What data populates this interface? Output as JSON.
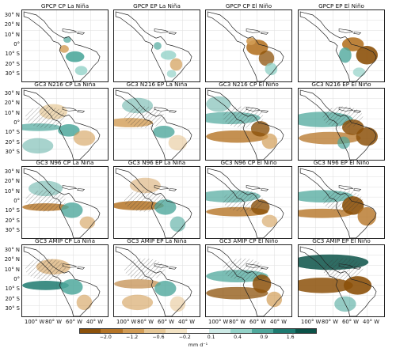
{
  "panels": [
    [
      "GPCP CP La Niña",
      "GPCP EP La Niña",
      "GPCP CP El Niño",
      "GPCP EP El Niño"
    ],
    [
      "GC3 N216 CP La Niña",
      "GC3 N216 EP La Niña",
      "GC3 N216 CP El Niño",
      "GC3 N216 EP El Niño"
    ],
    [
      "GC3 N96 CP La Niña",
      "GC3 N96 EP La Niña",
      "GC3 N96 CP El Niño",
      "GC3 N96 EP El Niño"
    ],
    [
      "GC3 AMIP CP La Niña",
      "GC3 AMIP EP La Niña",
      "GC3 AMIP CP El Niño",
      "GC3 AMIP EP El Niño"
    ]
  ],
  "y_ticks": [
    "30° N",
    "20° N",
    "10° N",
    "0°",
    "10° S",
    "20° S",
    "30° S"
  ],
  "x_ticks": [
    "100° W",
    "80° W",
    "60° W",
    "40° W"
  ],
  "colorbar": {
    "ticks": [
      "−2.0",
      "−1.2",
      "−0.6",
      "−0.2",
      "0.1",
      "0.4",
      "0.9",
      "1.6"
    ],
    "unit": "mm d⁻¹",
    "colors": [
      "#8c510a",
      "#b57426",
      "#d29c55",
      "#e6c796",
      "#f3e3c4",
      "#ffffff",
      "#cdeae6",
      "#93d2c8",
      "#4fa89c",
      "#1d7a70",
      "#0b5248"
    ]
  }
}
